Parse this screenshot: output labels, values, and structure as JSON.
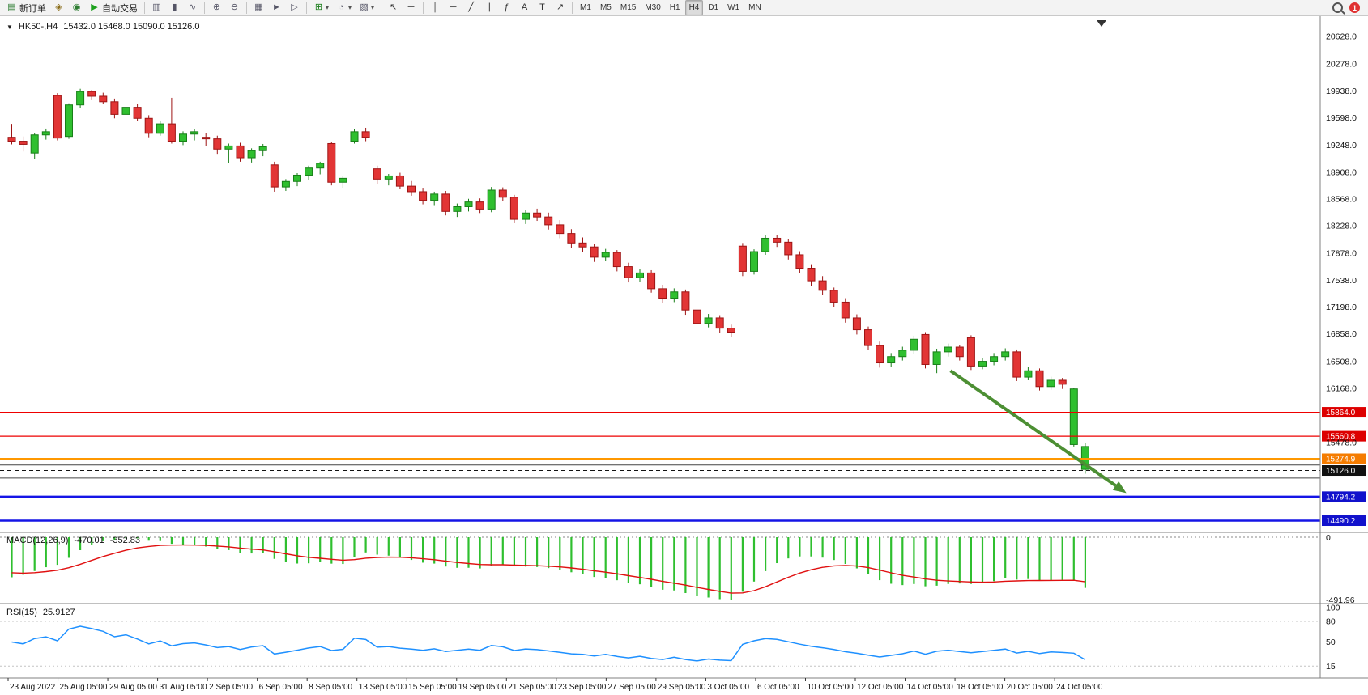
{
  "toolbar": {
    "groups": [
      {
        "name": "standard",
        "items": [
          {
            "name": "new-order-button",
            "icon": "new-order-icon",
            "glyph": "▤",
            "glyph_color": "#2e7d32",
            "label": "新订单"
          },
          {
            "name": "metaeditor-button",
            "icon": "metaeditor-icon",
            "glyph": "◈",
            "glyph_color": "#8a6d1a"
          },
          {
            "name": "community-button",
            "icon": "community-icon",
            "glyph": "◉",
            "glyph_color": "#2e7d32"
          },
          {
            "name": "autotrading-button",
            "icon": "autotrading-play-icon",
            "glyph": "▶",
            "glyph_color": "#1da11d",
            "label": "自动交易"
          }
        ]
      },
      {
        "name": "chart-types",
        "items": [
          {
            "name": "bar-chart-button",
            "icon": "bar-chart-icon",
            "glyph": "▥",
            "glyph_color": "#556"
          },
          {
            "name": "candlestick-button",
            "icon": "candlestick-icon",
            "glyph": "▮",
            "glyph_color": "#556"
          },
          {
            "name": "line-chart-button",
            "icon": "line-chart-icon",
            "glyph": "∿",
            "glyph_color": "#556"
          }
        ]
      },
      {
        "name": "zoom",
        "items": [
          {
            "name": "zoom-in-button",
            "icon": "zoom-in-icon",
            "glyph": "⊕",
            "glyph_color": "#556"
          },
          {
            "name": "zoom-out-button",
            "icon": "zoom-out-icon",
            "glyph": "⊖",
            "glyph_color": "#556"
          }
        ]
      },
      {
        "name": "arrange",
        "items": [
          {
            "name": "tile-windows-button",
            "icon": "tile-windows-icon",
            "glyph": "▦",
            "glyph_color": "#556"
          },
          {
            "name": "auto-scroll-button",
            "icon": "auto-scroll-icon",
            "glyph": "►",
            "glyph_color": "#556"
          },
          {
            "name": "chart-shift-button",
            "icon": "chart-shift-icon",
            "glyph": "▷",
            "glyph_color": "#556"
          }
        ]
      },
      {
        "name": "chart-menus",
        "items": [
          {
            "name": "indicators-button",
            "icon": "indicators-icon",
            "glyph": "⊞",
            "glyph_color": "#1a7d1a",
            "caret": true
          },
          {
            "name": "periods-button",
            "icon": "periods-icon",
            "glyph": "◔",
            "glyph_color": "#556",
            "caret": true
          },
          {
            "name": "templates-button",
            "icon": "templates-icon",
            "glyph": "▧",
            "glyph_color": "#556",
            "caret": true
          }
        ]
      },
      {
        "name": "cursor-tools",
        "items": [
          {
            "name": "cursor-button",
            "icon": "cursor-icon",
            "glyph": "↖",
            "glyph_color": "#333"
          },
          {
            "name": "crosshair-button",
            "icon": "crosshair-icon",
            "glyph": "┼",
            "glyph_color": "#333"
          }
        ]
      },
      {
        "name": "line-studies",
        "items": [
          {
            "name": "vertical-line-button",
            "icon": "vertical-line-icon",
            "glyph": "│",
            "glyph_color": "#333"
          },
          {
            "name": "horizontal-line-button",
            "icon": "horizontal-line-icon",
            "glyph": "─",
            "glyph_color": "#333"
          },
          {
            "name": "trendline-button",
            "icon": "trendline-icon",
            "glyph": "╱",
            "glyph_color": "#333"
          },
          {
            "name": "channel-button",
            "icon": "channel-icon",
            "glyph": "∥",
            "glyph_color": "#333"
          },
          {
            "name": "fibonacci-button",
            "icon": "fibonacci-icon",
            "glyph": "ƒ",
            "glyph_color": "#333"
          },
          {
            "name": "text-button",
            "icon": "text-icon",
            "glyph": "A",
            "glyph_color": "#333"
          },
          {
            "name": "label-button",
            "icon": "label-icon",
            "glyph": "T",
            "glyph_color": "#333"
          },
          {
            "name": "arrows-button",
            "icon": "arrows-icon",
            "glyph": "↗",
            "glyph_color": "#333"
          }
        ]
      }
    ],
    "timeframes": {
      "items": [
        "M1",
        "M5",
        "M15",
        "M30",
        "H1",
        "H4",
        "D1",
        "W1",
        "MN"
      ],
      "active": "H4"
    },
    "right": {
      "notification_count": "1"
    }
  },
  "chart": {
    "symbol_period": "HK50-,H4",
    "ohlc_text": "15432.0 15468.0 15090.0 15126.0",
    "icons": {
      "quick_trade": "▼"
    }
  },
  "indicators": {
    "macd": {
      "label": "MACD(12,26,9)",
      "value_main": "-470.01",
      "value_signal": "-352.83",
      "axis_zero": "0",
      "axis_min": "-491.96",
      "histogram_color": "#2fbf2f",
      "signal_color": "#e01010"
    },
    "rsi": {
      "label": "RSI(15)",
      "value": "25.9127",
      "levels": [
        100,
        80,
        50,
        15
      ],
      "line_color": "#1e90ff"
    }
  },
  "chart_data": {
    "type": "candlestick",
    "symbol": "HK50-",
    "timeframe": "H4",
    "ohlc_current": {
      "open": 15432.0,
      "high": 15468.0,
      "low": 15090.0,
      "close": 15126.0
    },
    "bull_color": "#2fbf2f",
    "bull_border": "#187f18",
    "bear_color": "#e23535",
    "bear_border": "#9e1414",
    "candles": [
      [
        19350,
        19520,
        19260,
        19300
      ],
      [
        19300,
        19360,
        19170,
        19260
      ],
      [
        19150,
        19400,
        19080,
        19380
      ],
      [
        19380,
        19460,
        19320,
        19420
      ],
      [
        19880,
        19910,
        19310,
        19340
      ],
      [
        19360,
        19780,
        19330,
        19760
      ],
      [
        19760,
        19965,
        19720,
        19930
      ],
      [
        19930,
        19950,
        19830,
        19870
      ],
      [
        19870,
        19915,
        19770,
        19800
      ],
      [
        19800,
        19840,
        19590,
        19640
      ],
      [
        19640,
        19755,
        19600,
        19730
      ],
      [
        19730,
        19775,
        19560,
        19590
      ],
      [
        19590,
        19630,
        19350,
        19400
      ],
      [
        19400,
        19555,
        19370,
        19520
      ],
      [
        19520,
        19850,
        19270,
        19300
      ],
      [
        19300,
        19425,
        19250,
        19390
      ],
      [
        19390,
        19450,
        19310,
        19420
      ],
      [
        19350,
        19400,
        19240,
        19330
      ],
      [
        19330,
        19370,
        19140,
        19200
      ],
      [
        19200,
        19270,
        19020,
        19240
      ],
      [
        19240,
        19280,
        19040,
        19090
      ],
      [
        19090,
        19210,
        19030,
        19180
      ],
      [
        19180,
        19265,
        19110,
        19230
      ],
      [
        19000,
        19040,
        18660,
        18720
      ],
      [
        18720,
        18820,
        18670,
        18790
      ],
      [
        18790,
        18895,
        18730,
        18870
      ],
      [
        18870,
        18990,
        18810,
        18960
      ],
      [
        18960,
        19040,
        18880,
        19020
      ],
      [
        19270,
        19290,
        18740,
        18780
      ],
      [
        18780,
        18860,
        18710,
        18830
      ],
      [
        19300,
        19460,
        19270,
        19420
      ],
      [
        19420,
        19470,
        19300,
        19350
      ],
      [
        18950,
        18990,
        18760,
        18820
      ],
      [
        18820,
        18885,
        18740,
        18860
      ],
      [
        18860,
        18900,
        18690,
        18730
      ],
      [
        18730,
        18795,
        18610,
        18660
      ],
      [
        18660,
        18710,
        18500,
        18550
      ],
      [
        18550,
        18660,
        18490,
        18630
      ],
      [
        18630,
        18670,
        18360,
        18410
      ],
      [
        18410,
        18510,
        18340,
        18470
      ],
      [
        18470,
        18570,
        18410,
        18530
      ],
      [
        18530,
        18575,
        18390,
        18440
      ],
      [
        18440,
        18720,
        18400,
        18680
      ],
      [
        18680,
        18715,
        18540,
        18590
      ],
      [
        18590,
        18620,
        18260,
        18310
      ],
      [
        18310,
        18430,
        18250,
        18390
      ],
      [
        18390,
        18445,
        18290,
        18340
      ],
      [
        18340,
        18395,
        18180,
        18240
      ],
      [
        18240,
        18300,
        18070,
        18130
      ],
      [
        18130,
        18185,
        17950,
        18010
      ],
      [
        18010,
        18080,
        17900,
        17960
      ],
      [
        17960,
        18000,
        17770,
        17830
      ],
      [
        17830,
        17935,
        17780,
        17890
      ],
      [
        17890,
        17920,
        17650,
        17710
      ],
      [
        17710,
        17760,
        17510,
        17570
      ],
      [
        17570,
        17680,
        17520,
        17630
      ],
      [
        17630,
        17665,
        17380,
        17430
      ],
      [
        17430,
        17480,
        17250,
        17310
      ],
      [
        17310,
        17435,
        17260,
        17390
      ],
      [
        17390,
        17420,
        17100,
        17160
      ],
      [
        17160,
        17210,
        16930,
        16990
      ],
      [
        16990,
        17110,
        16940,
        17060
      ],
      [
        17060,
        17095,
        16870,
        16930
      ],
      [
        16930,
        16975,
        16820,
        16880
      ],
      [
        17970,
        18010,
        17590,
        17650
      ],
      [
        17650,
        17930,
        17610,
        17900
      ],
      [
        17900,
        18105,
        17860,
        18070
      ],
      [
        18070,
        18110,
        17960,
        18020
      ],
      [
        18020,
        18060,
        17800,
        17860
      ],
      [
        17860,
        17905,
        17630,
        17690
      ],
      [
        17690,
        17740,
        17470,
        17530
      ],
      [
        17530,
        17590,
        17350,
        17410
      ],
      [
        17410,
        17445,
        17200,
        17260
      ],
      [
        17260,
        17310,
        17000,
        17060
      ],
      [
        17060,
        17105,
        16850,
        16910
      ],
      [
        16910,
        16950,
        16650,
        16710
      ],
      [
        16710,
        16760,
        16430,
        16490
      ],
      [
        16490,
        16615,
        16440,
        16570
      ],
      [
        16570,
        16695,
        16520,
        16650
      ],
      [
        16650,
        16835,
        16600,
        16790
      ],
      [
        16850,
        16880,
        16420,
        16470
      ],
      [
        16470,
        16670,
        16360,
        16630
      ],
      [
        16630,
        16735,
        16570,
        16690
      ],
      [
        16690,
        16720,
        16520,
        16570
      ],
      [
        16810,
        16840,
        16400,
        16450
      ],
      [
        16450,
        16555,
        16410,
        16510
      ],
      [
        16510,
        16615,
        16460,
        16570
      ],
      [
        16570,
        16675,
        16520,
        16630
      ],
      [
        16630,
        16660,
        16260,
        16310
      ],
      [
        16310,
        16435,
        16270,
        16390
      ],
      [
        16390,
        16420,
        16140,
        16190
      ],
      [
        16190,
        16315,
        16150,
        16270
      ],
      [
        16270,
        16300,
        16160,
        16220
      ],
      [
        15455,
        16170,
        15430,
        16160
      ],
      [
        15140,
        15470,
        15085,
        15430
      ]
    ],
    "y_axis_ticks": [
      20628,
      20278,
      19938,
      19598,
      19248,
      18908,
      18568,
      18228,
      17878,
      17538,
      17198,
      16858,
      16508,
      16168,
      15478
    ],
    "x_axis_labels": [
      "23 Aug 2022",
      "25 Aug 05:00",
      "29 Aug 05:00",
      "31 Aug 05:00",
      "2 Sep 05:00",
      "6 Sep 05:00",
      "8 Sep 05:00",
      "13 Sep 05:00",
      "15 Sep 05:00",
      "19 Sep 05:00",
      "21 Sep 05:00",
      "23 Sep 05:00",
      "27 Sep 05:00",
      "29 Sep 05:00",
      "3 Oct 05:00",
      "6 Oct 05:00",
      "10 Oct 05:00",
      "12 Oct 05:00",
      "14 Oct 05:00",
      "18 Oct 05:00",
      "20 Oct 05:00",
      "24 Oct 05:00"
    ],
    "hlines": [
      {
        "name": "resistance-line-1",
        "price": 15864.0,
        "label": "15864.0",
        "color": "#ee0000",
        "width": 1.2,
        "style": "solid",
        "badge": "#dd0000"
      },
      {
        "name": "resistance-line-2",
        "price": 15560.8,
        "label": "15560.8",
        "color": "#ee0000",
        "width": 1.2,
        "style": "solid",
        "badge": "#dd0000"
      },
      {
        "name": "pivot-line",
        "price": 15274.9,
        "label": "15274.9",
        "color": "#ff9800",
        "width": 2,
        "style": "solid",
        "badge": "#f57c00"
      },
      {
        "name": "range-line-upper",
        "price": 15195.0,
        "label": null,
        "color": "#444444",
        "width": 1,
        "style": "solid",
        "badge": null
      },
      {
        "name": "bid-price-line",
        "price": 15126.0,
        "label": "15126.0",
        "color": "#111111",
        "width": 1,
        "style": "dash",
        "badge": "#111111"
      },
      {
        "name": "range-line-lower",
        "price": 15030.0,
        "label": null,
        "color": "#444444",
        "width": 1,
        "style": "solid",
        "badge": null
      },
      {
        "name": "support-line-1",
        "price": 14794.2,
        "label": "14794.2",
        "color": "#1515e6",
        "width": 2.4,
        "style": "solid",
        "badge": "#1111cc"
      },
      {
        "name": "support-line-2",
        "price": 14490.2,
        "label": "14490.2",
        "color": "#1515e6",
        "width": 2.4,
        "style": "solid",
        "badge": "#1111cc"
      }
    ],
    "arrow": {
      "name": "trend-arrow",
      "from_candle": 82.2,
      "from_price": 16390,
      "to_candle": 97.6,
      "to_price": 14840,
      "color": "#4c8f33",
      "width": 4
    }
  }
}
